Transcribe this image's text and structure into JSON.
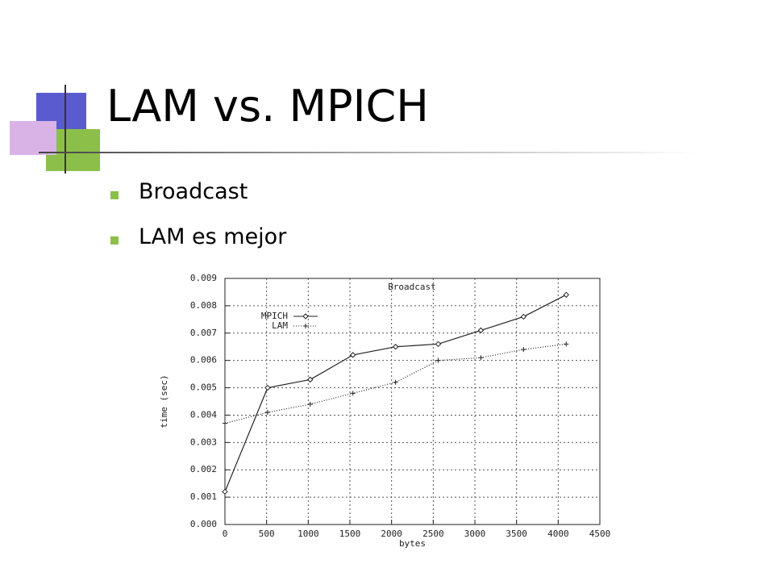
{
  "slide": {
    "title": "LAM vs. MPICH",
    "bullets": [
      "Broadcast",
      "LAM es mejor"
    ]
  },
  "chart_data": {
    "type": "line",
    "title": "Broadcast",
    "x_label": "bytes",
    "y_label": "time (sec)",
    "x": [
      0,
      512,
      1024,
      1536,
      2048,
      2560,
      3072,
      3584,
      4096
    ],
    "series": [
      {
        "name": "MPICH",
        "color": "#222222",
        "marker": "diamond",
        "dash": "solid",
        "values": [
          0.0012,
          0.005,
          0.0053,
          0.0062,
          0.0065,
          0.0066,
          0.0071,
          0.0076,
          0.0084
        ]
      },
      {
        "name": "LAM",
        "color": "#222222",
        "marker": "plus",
        "dash": "dotted",
        "values": [
          0.0037,
          0.0041,
          0.0044,
          0.0048,
          0.0052,
          0.006,
          0.0061,
          0.0064,
          0.0066
        ]
      }
    ],
    "xlim": [
      0,
      4500
    ],
    "xticks": [
      0,
      500,
      1000,
      1500,
      2000,
      2500,
      3000,
      3500,
      4000,
      4500
    ],
    "ylim": [
      0,
      0.009
    ],
    "yticks": [
      {
        "value": 0,
        "label": "0.000"
      },
      0.001,
      0.002,
      0.003,
      0.004,
      0.005,
      0.006,
      0.007,
      0.008,
      0.009
    ],
    "grid": true,
    "legend": "upper-left"
  }
}
